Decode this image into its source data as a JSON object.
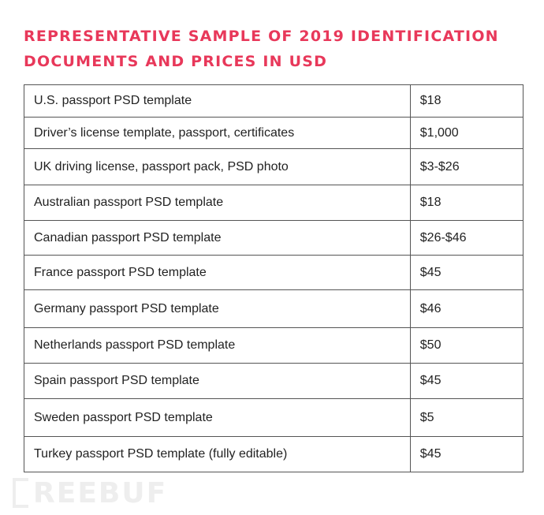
{
  "title": {
    "line1": "REPRESENTATIVE SAMPLE OF 2019 IDENTIFICATION",
    "line2": "DOCUMENTS AND PRICES IN USD"
  },
  "rows": [
    {
      "item": "U.S. passport PSD template",
      "price": "$18"
    },
    {
      "item": "Driver’s license template, passport, certificates",
      "price": "$1,000"
    },
    {
      "item": "UK driving license, passport pack, PSD photo",
      "price": "$3-$26"
    },
    {
      "item": "Australian passport PSD template",
      "price": "$18"
    },
    {
      "item": "Canadian passport PSD template",
      "price": "$26-$46"
    },
    {
      "item": "France passport PSD template",
      "price": "$45"
    },
    {
      "item": "Germany passport PSD template",
      "price": "$46"
    },
    {
      "item": "Netherlands passport PSD template",
      "price": "$50"
    },
    {
      "item": "Spain passport PSD template",
      "price": "$45"
    },
    {
      "item": "Sweden passport PSD template",
      "price": "$5"
    },
    {
      "item": "Turkey passport PSD template (fully editable)",
      "price": "$45"
    }
  ],
  "watermark": "REEBUF"
}
